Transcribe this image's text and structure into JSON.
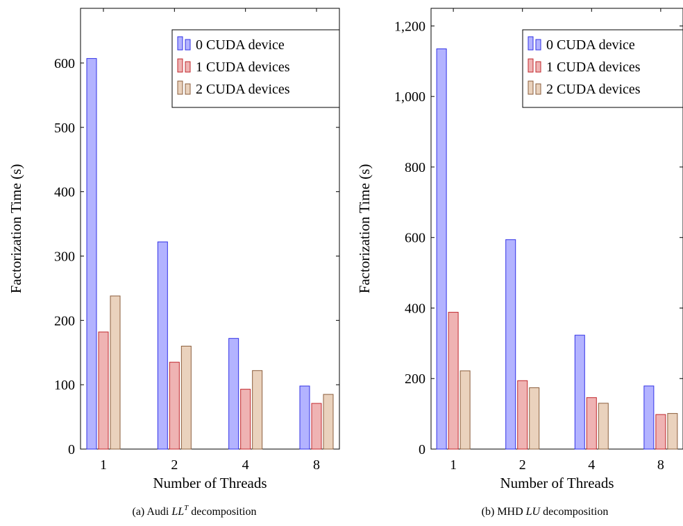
{
  "chart_data": [
    {
      "type": "bar",
      "categories": [
        "1",
        "2",
        "4",
        "8"
      ],
      "series": [
        {
          "name": "0 CUDA device",
          "values": [
            607,
            322,
            172,
            98
          ],
          "color": "#b3b3ff",
          "stroke": "#3232e6"
        },
        {
          "name": "1 CUDA devices",
          "values": [
            182,
            135,
            93,
            71
          ],
          "color": "#efb3b3",
          "stroke": "#c0272d"
        },
        {
          "name": "2 CUDA devices",
          "values": [
            238,
            160,
            122,
            85
          ],
          "color": "#ead2bd",
          "stroke": "#8b5e3c"
        }
      ],
      "xlabel": "Number of Threads",
      "ylabel": "Factorization Time (s)",
      "ylim": [
        0,
        685
      ],
      "yticks": [
        0,
        100,
        200,
        300,
        400,
        500,
        600
      ],
      "ytick_labels": [
        "0",
        "100",
        "200",
        "300",
        "400",
        "500",
        "600"
      ],
      "legend_position": "top-right",
      "grid": false,
      "caption_prefix": "(a) Audi ",
      "caption_math_base": "LL",
      "caption_math_sup": "T",
      "caption_suffix": " decomposition"
    },
    {
      "type": "bar",
      "categories": [
        "1",
        "2",
        "4",
        "8"
      ],
      "series": [
        {
          "name": "0 CUDA device",
          "values": [
            1135,
            594,
            323,
            179
          ],
          "color": "#b3b3ff",
          "stroke": "#3232e6"
        },
        {
          "name": "1 CUDA devices",
          "values": [
            388,
            194,
            146,
            98
          ],
          "color": "#efb3b3",
          "stroke": "#c0272d"
        },
        {
          "name": "2 CUDA devices",
          "values": [
            222,
            174,
            130,
            101
          ],
          "color": "#ead2bd",
          "stroke": "#8b5e3c"
        }
      ],
      "xlabel": "Number of Threads",
      "ylabel": "Factorization Time (s)",
      "ylim": [
        0,
        1250
      ],
      "yticks": [
        0,
        200,
        400,
        600,
        800,
        1000,
        1200
      ],
      "ytick_labels": [
        "0",
        "200",
        "400",
        "600",
        "800",
        "1,000",
        "1,200"
      ],
      "legend_position": "top-right",
      "grid": false,
      "caption_prefix": "(b) MHD ",
      "caption_math_base": "LU",
      "caption_math_sup": "",
      "caption_suffix": " decomposition"
    }
  ]
}
